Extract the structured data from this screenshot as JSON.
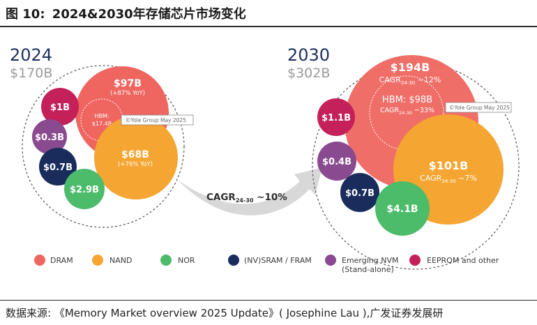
{
  "title": {
    "prefix": "图 10:",
    "text": "2024&2030年存储芯片市场变化"
  },
  "source": {
    "label": "数据来源:",
    "text": "《Memory Market overview 2025 Update》( Josephine Lau ),广发证券发展研"
  },
  "watermark": "©Yole Group May 2025",
  "cagr_arrow": {
    "main": "CAGR",
    "sub": "24-30",
    "value": " ~10%"
  },
  "colors": {
    "DRAM": "#ef6660",
    "NAND": "#f5a531",
    "NOR": "#4cbb6a",
    "SRAM": "#1a2c5c",
    "NVM": "#8a4a8f",
    "EEPROM": "#c4205a",
    "year": "#1f3060",
    "total": "#9a9a9a",
    "arrow": "#d8d8d8"
  },
  "chart_data": {
    "type": "bubble",
    "title": "2024&2030年存储芯片市场变化",
    "panels": [
      {
        "year": "2024",
        "total": "$170B",
        "bubbles": [
          {
            "category": "DRAM",
            "value": 97,
            "label": "$97B",
            "note": "(+87% YoY)",
            "inner": {
              "line1": "HBM:",
              "line2": "$17.4B"
            }
          },
          {
            "category": "NAND",
            "value": 68,
            "label": "$68B",
            "note": "(+76% YoY)"
          },
          {
            "category": "EEPROM",
            "value": 1,
            "label": "$1B"
          },
          {
            "category": "NVM",
            "value": 0.3,
            "label": "$0.3B"
          },
          {
            "category": "SRAM",
            "value": 0.7,
            "label": "$0.7B"
          },
          {
            "category": "NOR",
            "value": 2.9,
            "label": "$2.9B"
          }
        ]
      },
      {
        "year": "2030",
        "total": "$302B",
        "bubbles": [
          {
            "category": "DRAM",
            "value": 194,
            "label": "$194B",
            "note_main": "CAGR",
            "note_sub": "24-30",
            "note_tail": " ~12%",
            "inner": {
              "line1": "HBM: $98B",
              "note_main": "CAGR",
              "note_sub": "24-30",
              "note_tail": " ~33%"
            }
          },
          {
            "category": "NAND",
            "value": 101,
            "label": "$101B",
            "note_main": "CAGR",
            "note_sub": "24-30",
            "note_tail": " ~7%"
          },
          {
            "category": "EEPROM",
            "value": 1.1,
            "label": "$1.1B"
          },
          {
            "category": "NVM",
            "value": 0.4,
            "label": "$0.4B"
          },
          {
            "category": "SRAM",
            "value": 0.7,
            "label": "$0.7B"
          },
          {
            "category": "NOR",
            "value": 4.1,
            "label": "$4.1B"
          }
        ]
      }
    ],
    "legend": [
      {
        "key": "DRAM",
        "label": "DRAM"
      },
      {
        "key": "NAND",
        "label": "NAND"
      },
      {
        "key": "NOR",
        "label": "NOR"
      },
      {
        "key": "SRAM",
        "label": "(NV)SRAM / FRAM"
      },
      {
        "key": "NVM",
        "label": "Emerging NVM",
        "label2": "(Stand-alone)"
      },
      {
        "key": "EEPROM",
        "label": "EEPROM and other"
      }
    ]
  }
}
